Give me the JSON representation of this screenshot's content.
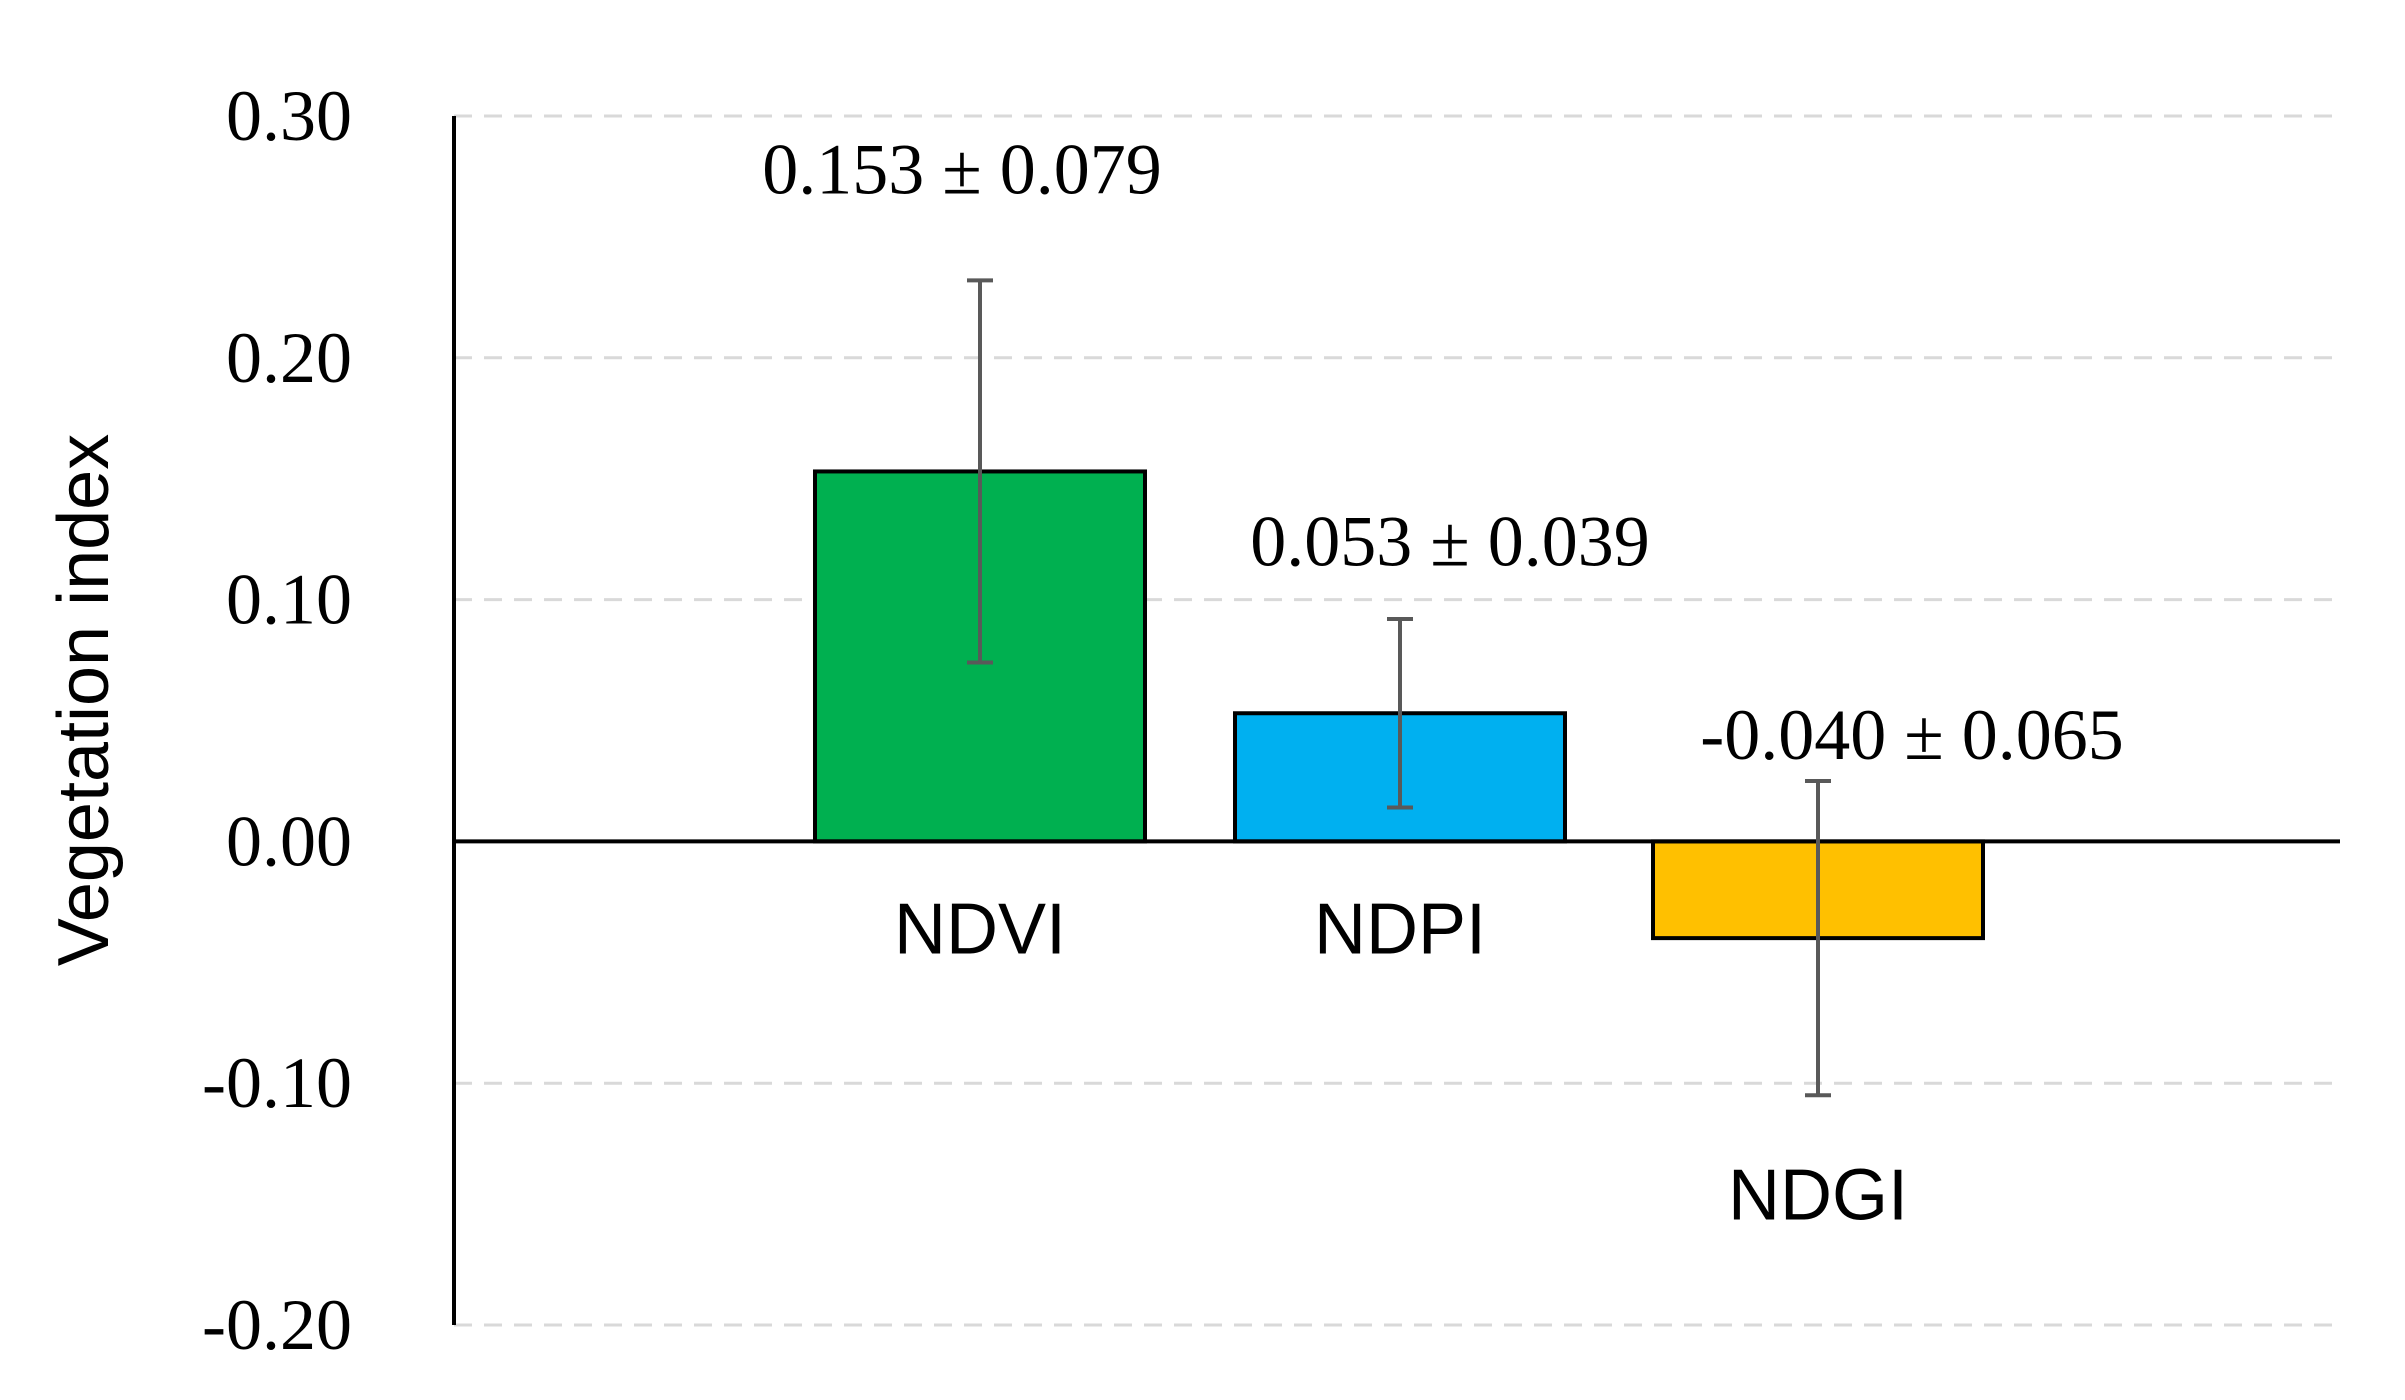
{
  "chart_data": {
    "type": "bar",
    "title": "",
    "xlabel": "",
    "ylabel": "Vegetation index",
    "categories": [
      "NDVI",
      "NDPI",
      "NDGI"
    ],
    "values": [
      0.153,
      0.053,
      -0.04
    ],
    "errors": [
      0.079,
      0.039,
      0.065
    ],
    "data_labels": [
      "0.153 ± 0.079",
      "0.053 ± 0.039",
      "-0.040 ± 0.065"
    ],
    "ylim": [
      -0.2,
      0.3
    ],
    "yticks": [
      0.3,
      0.2,
      0.1,
      0.0,
      -0.1,
      -0.2
    ],
    "ytick_labels": [
      "0.30",
      "0.20",
      "0.10",
      "0.00",
      "-0.10",
      "-0.20"
    ],
    "grid": "horizontal dashed",
    "legend": "none",
    "colors": [
      "#00b050",
      "#00b0f0",
      "#ffc000"
    ],
    "error_bar_color": "#595959",
    "grid_color": "#d9d9d9"
  }
}
